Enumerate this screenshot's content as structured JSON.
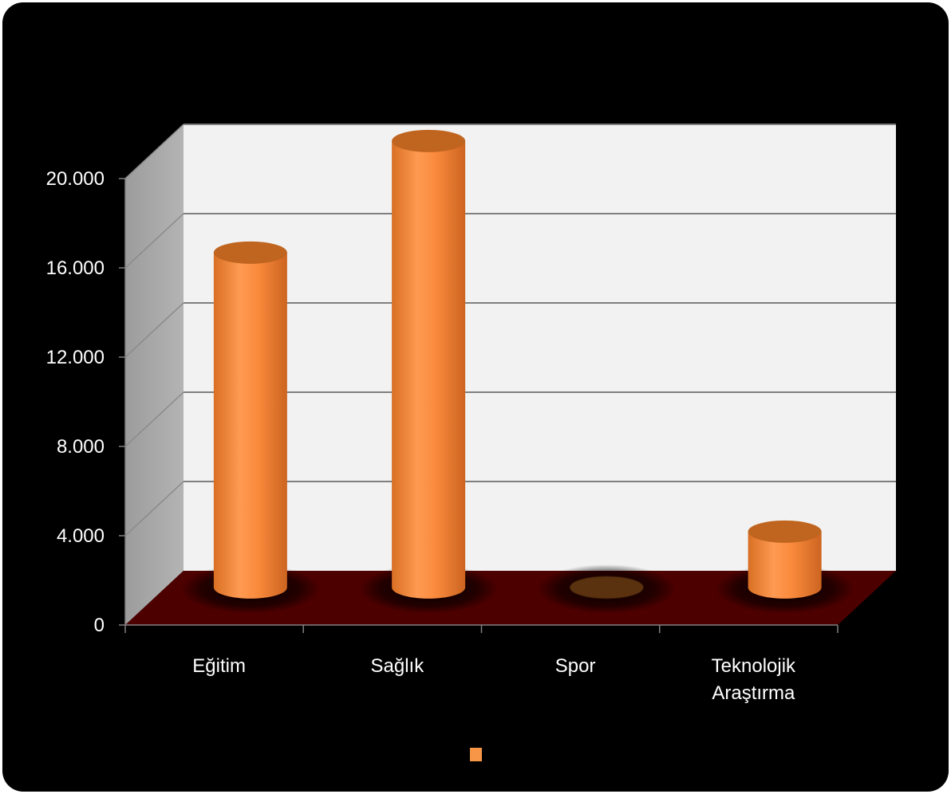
{
  "chart_data": {
    "type": "bar",
    "style": "3d-cylinder",
    "categories": [
      "Eğitim",
      "Sağlık",
      "Spor",
      "Teknolojik Araştırma"
    ],
    "category_lines": [
      [
        "Eğitim"
      ],
      [
        "Sağlık"
      ],
      [
        "Spor"
      ],
      [
        "Teknolojik",
        "Araştırma"
      ]
    ],
    "series": [
      {
        "values": [
          15000,
          20000,
          0,
          2500
        ]
      }
    ],
    "ylim": [
      0,
      20000
    ],
    "yticks": [
      0,
      4000,
      8000,
      12000,
      16000,
      20000
    ],
    "ytick_labels": [
      "0",
      "4.000",
      "8.000",
      "12.000",
      "16.000",
      "20.000"
    ],
    "grid": true,
    "legend": "bottom-center",
    "colors": {
      "background": "#000000",
      "back_wall": "#f2f2f2",
      "side_wall": "#a6a6a6",
      "floor": "#4d0000",
      "bar": "#f79646",
      "bar_top": "#c0651f",
      "gridline": "#7f7f7f"
    }
  }
}
